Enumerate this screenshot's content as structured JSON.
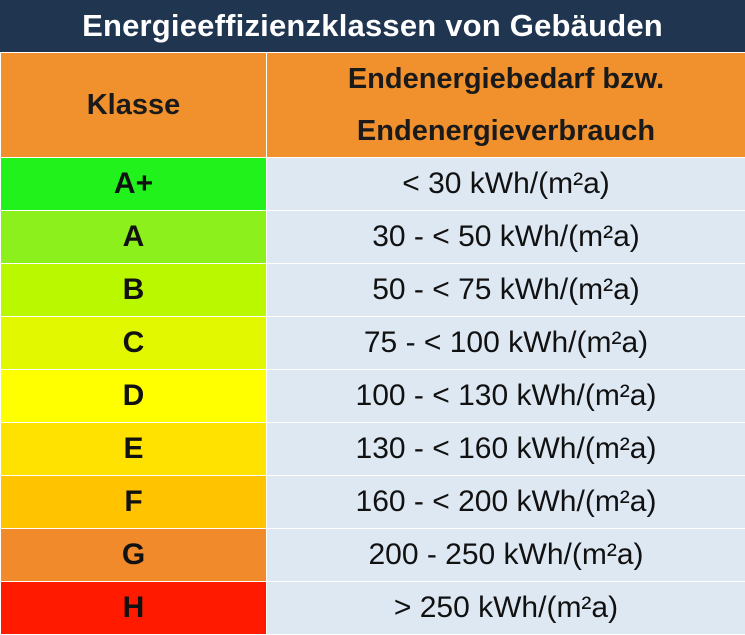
{
  "title": "Energieeffizienzklassen von Gebäuden",
  "table": {
    "headers": {
      "class": "Klasse",
      "value_line1": "Endenergiebedarf bzw.",
      "value_line2": "Endenergieverbrauch"
    },
    "rows": [
      {
        "class": "A+",
        "value": "< 30 kWh/(m²a)",
        "color": "#22f21c"
      },
      {
        "class": "A",
        "value": "30 - < 50 kWh/(m²a)",
        "color": "#8cf01c"
      },
      {
        "class": "B",
        "value": "50 - < 75 kWh/(m²a)",
        "color": "#baf800"
      },
      {
        "class": "C",
        "value": "75 - < 100 kWh/(m²a)",
        "color": "#e2f800"
      },
      {
        "class": "D",
        "value": "100 - < 130 kWh/(m²a)",
        "color": "#ffff00"
      },
      {
        "class": "E",
        "value": "130 - < 160 kWh/(m²a)",
        "color": "#ffe200"
      },
      {
        "class": "F",
        "value": "160 - < 200 kWh/(m²a)",
        "color": "#ffc300"
      },
      {
        "class": "G",
        "value": "200 - 250 kWh/(m²a)",
        "color": "#f08a2a"
      },
      {
        "class": "H",
        "value": "> 250 kWh/(m²a)",
        "color": "#ff1a00"
      }
    ]
  }
}
